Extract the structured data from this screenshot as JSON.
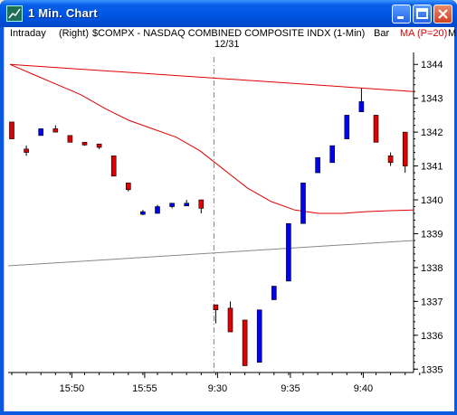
{
  "window": {
    "title": "1 Min. Chart",
    "buttons": [
      "minimize",
      "maximize",
      "close"
    ]
  },
  "header": {
    "mode": "Intraday",
    "axis_side": "(Right)",
    "symbol_desc": "$COMPX - NASDAQ COMBINED COMPOSITE INDX (1-Min)",
    "style": "Bar",
    "indicator": "MA (P=20)",
    "cut_label": "M"
  },
  "session_marker": "12/31",
  "colors": {
    "up_bar": "#0000ff",
    "down_bar": "#e00000",
    "ma_line": "#e00000",
    "ref_line": "#888888",
    "session_divider": "#808080"
  },
  "chart_data": {
    "type": "candlestick",
    "y_ticks": [
      1335,
      1336,
      1337,
      1338,
      1339,
      1340,
      1341,
      1342,
      1343,
      1344
    ],
    "x_ticks": [
      "15:50",
      "15:55",
      "9:30",
      "9:35",
      "9:40"
    ],
    "ylim": [
      1334.9,
      1344.2
    ],
    "candles": [
      {
        "o": 1342.3,
        "h": 1342.3,
        "l": 1341.8,
        "c": 1341.8
      },
      {
        "o": 1341.5,
        "h": 1341.6,
        "l": 1341.3,
        "c": 1341.4
      },
      {
        "o": 1341.9,
        "h": 1342.1,
        "l": 1341.9,
        "c": 1342.1
      },
      {
        "o": 1342.1,
        "h": 1342.2,
        "l": 1342.0,
        "c": 1342.0
      },
      {
        "o": 1341.9,
        "h": 1341.9,
        "l": 1341.7,
        "c": 1341.7
      },
      {
        "o": 1341.7,
        "h": 1341.7,
        "l": 1341.6,
        "c": 1341.65
      },
      {
        "o": 1341.65,
        "h": 1341.65,
        "l": 1341.5,
        "c": 1341.55
      },
      {
        "o": 1341.3,
        "h": 1341.3,
        "l": 1340.7,
        "c": 1340.7
      },
      {
        "o": 1340.5,
        "h": 1340.5,
        "l": 1340.25,
        "c": 1340.3
      },
      {
        "o": 1339.6,
        "h": 1339.7,
        "l": 1339.55,
        "c": 1339.65
      },
      {
        "o": 1339.6,
        "h": 1339.85,
        "l": 1339.6,
        "c": 1339.8
      },
      {
        "o": 1339.8,
        "h": 1339.9,
        "l": 1339.75,
        "c": 1339.9
      },
      {
        "o": 1339.9,
        "h": 1340.0,
        "l": 1339.85,
        "c": 1339.9
      },
      {
        "o": 1340.0,
        "h": 1340.0,
        "l": 1339.6,
        "c": 1339.75
      },
      {
        "o": 1336.9,
        "h": 1336.9,
        "l": 1336.35,
        "c": 1336.75
      },
      {
        "o": 1336.8,
        "h": 1337.0,
        "l": 1336.1,
        "c": 1336.1
      },
      {
        "o": 1336.45,
        "h": 1336.45,
        "l": 1335.1,
        "c": 1335.1
      },
      {
        "o": 1335.2,
        "h": 1336.75,
        "l": 1335.2,
        "c": 1336.75
      },
      {
        "o": 1337.05,
        "h": 1337.45,
        "l": 1337.05,
        "c": 1337.45
      },
      {
        "o": 1337.6,
        "h": 1339.3,
        "l": 1337.6,
        "c": 1339.3
      },
      {
        "o": 1339.3,
        "h": 1340.5,
        "l": 1339.3,
        "c": 1340.5
      },
      {
        "o": 1340.8,
        "h": 1341.25,
        "l": 1340.8,
        "c": 1341.25
      },
      {
        "o": 1341.1,
        "h": 1341.6,
        "l": 1341.1,
        "c": 1341.6
      },
      {
        "o": 1341.8,
        "h": 1342.5,
        "l": 1341.8,
        "c": 1342.5
      },
      {
        "o": 1342.6,
        "h": 1343.3,
        "l": 1342.6,
        "c": 1342.9
      },
      {
        "o": 1342.5,
        "h": 1342.5,
        "l": 1341.7,
        "c": 1341.7
      },
      {
        "o": 1341.3,
        "h": 1341.4,
        "l": 1341.0,
        "c": 1341.1
      },
      {
        "o": 1342.0,
        "h": 1342.0,
        "l": 1340.8,
        "c": 1341.0
      }
    ],
    "ma_line": [
      1344.0,
      1343.7,
      1343.4,
      1343.1,
      1342.7,
      1342.35,
      1342.1,
      1341.85,
      1341.45,
      1340.9,
      1340.35,
      1339.95,
      1339.7,
      1339.6,
      1339.6,
      1339.65,
      1339.68,
      1339.7
    ],
    "ref_line_top": [
      1344.0,
      1343.2
    ],
    "ref_line_bottom": [
      1338.05,
      1338.8
    ]
  }
}
